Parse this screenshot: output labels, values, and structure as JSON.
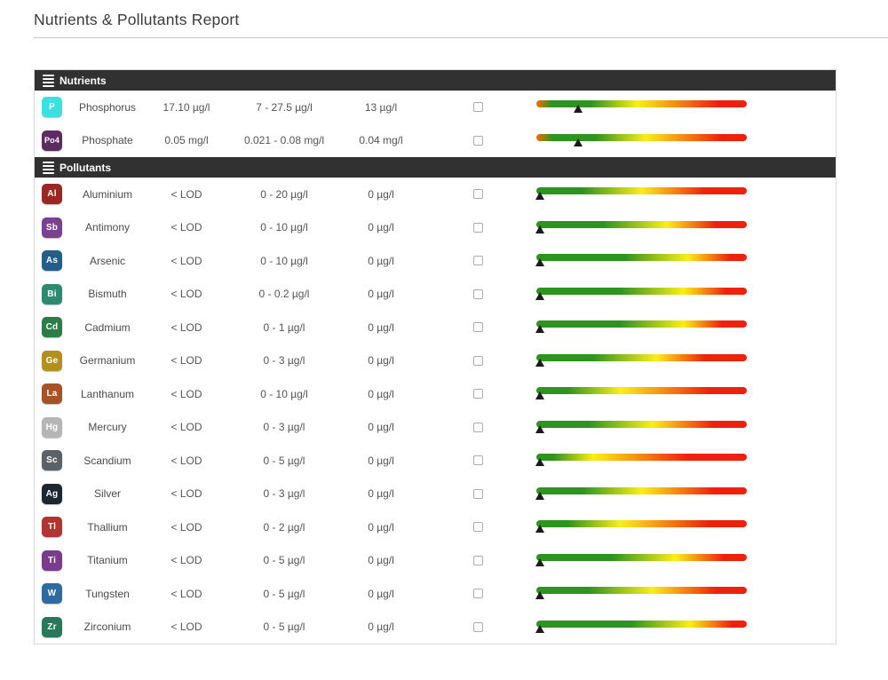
{
  "page": {
    "title": "Nutrients & Pollutants Report"
  },
  "colors": {
    "header_bg": "#313131",
    "bar_green": "#2e9420",
    "bar_yellow": "#fbee18",
    "bar_red": "#ee220c",
    "bar_leading_red": "#ff6a00"
  },
  "sections": [
    {
      "label": "Nutrients",
      "rows": [
        {
          "symbol": "P",
          "symbol_color": "#3be1e1",
          "name": "Phosphorus",
          "value": "17.10 µg/l",
          "range": "7 - 27.5 µg/l",
          "target": "13 µg/l",
          "checked": false,
          "bar": {
            "marker_pct": 20,
            "stops": [
              [
                "#ff6a00",
                0
              ],
              [
                "#2e9420",
                7
              ],
              [
                "#2e9420",
                26
              ],
              [
                "#fbee18",
                48
              ],
              [
                "#ee220c",
                86
              ]
            ]
          }
        },
        {
          "symbol": "Po4",
          "symbol_color": "#5e2a63",
          "name": "Phosphate",
          "value": "0.05 mg/l",
          "range": "0.021 - 0.08 mg/l",
          "target": "0.04 mg/l",
          "checked": false,
          "bar": {
            "marker_pct": 20,
            "stops": [
              [
                "#ff6a00",
                0
              ],
              [
                "#2e9420",
                7
              ],
              [
                "#2e9420",
                28
              ],
              [
                "#fbee18",
                52
              ],
              [
                "#ee220c",
                88
              ]
            ]
          }
        }
      ]
    },
    {
      "label": "Pollutants",
      "rows": [
        {
          "symbol": "Al",
          "symbol_color": "#9b2723",
          "name": "Aluminium",
          "value": "< LOD",
          "range": "0 - 20 µg/l",
          "target": "0 µg/l",
          "checked": false,
          "bar": {
            "marker_pct": 2,
            "stops": [
              [
                "#2e9420",
                0
              ],
              [
                "#2e9420",
                22
              ],
              [
                "#fbee18",
                50
              ],
              [
                "#ee220c",
                80
              ]
            ]
          }
        },
        {
          "symbol": "Sb",
          "symbol_color": "#7b4191",
          "name": "Antimony",
          "value": "< LOD",
          "range": "0 - 10 µg/l",
          "target": "0 µg/l",
          "checked": false,
          "bar": {
            "marker_pct": 2,
            "stops": [
              [
                "#2e9420",
                0
              ],
              [
                "#2e9420",
                32
              ],
              [
                "#fbee18",
                62
              ],
              [
                "#ee220c",
                85
              ]
            ]
          }
        },
        {
          "symbol": "As",
          "symbol_color": "#235e8a",
          "name": "Arsenic",
          "value": "< LOD",
          "range": "0 - 10 µg/l",
          "target": "0 µg/l",
          "checked": false,
          "bar": {
            "marker_pct": 2,
            "stops": [
              [
                "#2e9420",
                0
              ],
              [
                "#2e9420",
                42
              ],
              [
                "#fbee18",
                72
              ],
              [
                "#ee220c",
                92
              ]
            ]
          }
        },
        {
          "symbol": "Bi",
          "symbol_color": "#2b8a70",
          "name": "Bismuth",
          "value": "< LOD",
          "range": "0 - 0.2 µg/l",
          "target": "0 µg/l",
          "checked": false,
          "bar": {
            "marker_pct": 2,
            "stops": [
              [
                "#2e9420",
                0
              ],
              [
                "#2e9420",
                40
              ],
              [
                "#fbee18",
                70
              ],
              [
                "#ee220c",
                90
              ]
            ]
          }
        },
        {
          "symbol": "Cd",
          "symbol_color": "#2a7d44",
          "name": "Cadmium",
          "value": "< LOD",
          "range": "0 - 1 µg/l",
          "target": "0 µg/l",
          "checked": false,
          "bar": {
            "marker_pct": 2,
            "stops": [
              [
                "#2e9420",
                0
              ],
              [
                "#2e9420",
                40
              ],
              [
                "#fbee18",
                70
              ],
              [
                "#ee220c",
                88
              ]
            ]
          }
        },
        {
          "symbol": "Ge",
          "symbol_color": "#b3901e",
          "name": "Germanium",
          "value": "< LOD",
          "range": "0 - 3 µg/l",
          "target": "0 µg/l",
          "checked": false,
          "bar": {
            "marker_pct": 2,
            "stops": [
              [
                "#2e9420",
                0
              ],
              [
                "#2e9420",
                27
              ],
              [
                "#fbee18",
                57
              ],
              [
                "#ee220c",
                80
              ]
            ]
          }
        },
        {
          "symbol": "La",
          "symbol_color": "#a65426",
          "name": "Lanthanum",
          "value": "< LOD",
          "range": "0 - 10 µg/l",
          "target": "0 µg/l",
          "checked": false,
          "bar": {
            "marker_pct": 2,
            "stops": [
              [
                "#2e9420",
                0
              ],
              [
                "#2e9420",
                15
              ],
              [
                "#fbee18",
                40
              ],
              [
                "#ee220c",
                82
              ]
            ]
          }
        },
        {
          "symbol": "Hg",
          "symbol_color": "#b5b5b5",
          "name": "Mercury",
          "value": "< LOD",
          "range": "0 - 3 µg/l",
          "target": "0 µg/l",
          "checked": false,
          "bar": {
            "marker_pct": 2,
            "stops": [
              [
                "#2e9420",
                0
              ],
              [
                "#2e9420",
                25
              ],
              [
                "#fbee18",
                55
              ],
              [
                "#ee220c",
                84
              ]
            ]
          }
        },
        {
          "symbol": "Sc",
          "symbol_color": "#5a6268",
          "name": "Scandium",
          "value": "< LOD",
          "range": "0 - 5 µg/l",
          "target": "0 µg/l",
          "checked": false,
          "bar": {
            "marker_pct": 2,
            "stops": [
              [
                "#2e9420",
                0
              ],
              [
                "#2e9420",
                8
              ],
              [
                "#fbee18",
                27
              ],
              [
                "#ee220c",
                72
              ]
            ]
          }
        },
        {
          "symbol": "Ag",
          "symbol_color": "#1c2733",
          "name": "Silver",
          "value": "< LOD",
          "range": "0 - 3 µg/l",
          "target": "0 µg/l",
          "checked": false,
          "bar": {
            "marker_pct": 2,
            "stops": [
              [
                "#2e9420",
                0
              ],
              [
                "#2e9420",
                22
              ],
              [
                "#fbee18",
                50
              ],
              [
                "#ee220c",
                84
              ]
            ]
          }
        },
        {
          "symbol": "Tl",
          "symbol_color": "#b23430",
          "name": "Thallium",
          "value": "< LOD",
          "range": "0 - 2 µg/l",
          "target": "0 µg/l",
          "checked": false,
          "bar": {
            "marker_pct": 2,
            "stops": [
              [
                "#2e9420",
                0
              ],
              [
                "#2e9420",
                15
              ],
              [
                "#fbee18",
                40
              ],
              [
                "#ee220c",
                82
              ]
            ]
          }
        },
        {
          "symbol": "Ti",
          "symbol_color": "#7a3b8c",
          "name": "Titanium",
          "value": "< LOD",
          "range": "0 - 5 µg/l",
          "target": "0 µg/l",
          "checked": false,
          "bar": {
            "marker_pct": 2,
            "stops": [
              [
                "#2e9420",
                0
              ],
              [
                "#2e9420",
                36
              ],
              [
                "#fbee18",
                66
              ],
              [
                "#ee220c",
                89
              ]
            ]
          }
        },
        {
          "symbol": "W",
          "symbol_color": "#2d6ba0",
          "name": "Tungsten",
          "value": "< LOD",
          "range": "0 - 5 µg/l",
          "target": "0 µg/l",
          "checked": false,
          "bar": {
            "marker_pct": 2,
            "stops": [
              [
                "#2e9420",
                0
              ],
              [
                "#2e9420",
                25
              ],
              [
                "#fbee18",
                55
              ],
              [
                "#ee220c",
                85
              ]
            ]
          }
        },
        {
          "symbol": "Zr",
          "symbol_color": "#27795a",
          "name": "Zirconium",
          "value": "< LOD",
          "range": "0 - 5 µg/l",
          "target": "0 µg/l",
          "checked": false,
          "bar": {
            "marker_pct": 2,
            "stops": [
              [
                "#2e9420",
                0
              ],
              [
                "#2e9420",
                45
              ],
              [
                "#fbee18",
                73
              ],
              [
                "#ee220c",
                93
              ]
            ]
          }
        }
      ]
    }
  ]
}
